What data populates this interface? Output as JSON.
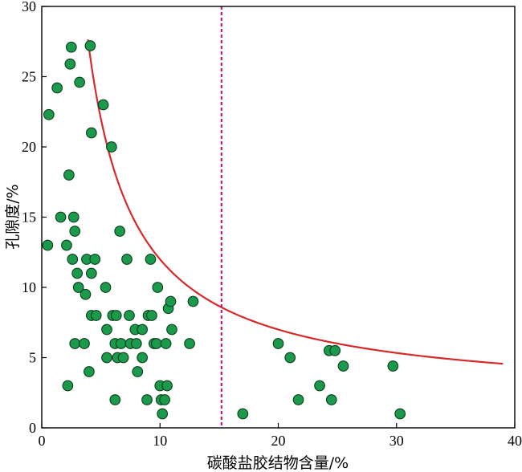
{
  "chart_data": {
    "type": "scatter",
    "xlabel": "碳酸盐胶结物含量/%",
    "ylabel": "孔隙度/%",
    "xlim": [
      0,
      40
    ],
    "ylim": [
      0,
      30
    ],
    "x_ticks": [
      0,
      10,
      20,
      30,
      40
    ],
    "y_ticks": [
      0,
      5,
      10,
      15,
      20,
      25,
      30
    ],
    "grid": false,
    "legend": "none",
    "colors": {
      "points_fill": "#1a9a4a",
      "points_stroke": "#0b3d1e",
      "trend_curve": "#d62a2a",
      "reference_line": "#c4168c",
      "axis": "#000000"
    },
    "series": [
      {
        "values": [
          [
            0.5,
            13
          ],
          [
            0.6,
            22.3
          ],
          [
            1.3,
            24.2
          ],
          [
            1.6,
            15
          ],
          [
            2.2,
            3
          ],
          [
            2.3,
            18
          ],
          [
            2.4,
            25.9
          ],
          [
            2.5,
            27.1
          ],
          [
            2.7,
            15
          ],
          [
            2.8,
            14
          ],
          [
            2.1,
            13
          ],
          [
            2.6,
            12
          ],
          [
            3.0,
            11
          ],
          [
            3.1,
            10
          ],
          [
            3.2,
            24.6
          ],
          [
            2.8,
            6
          ],
          [
            3.6,
            6
          ],
          [
            3.7,
            9.5
          ],
          [
            3.8,
            12
          ],
          [
            4.0,
            4
          ],
          [
            4.1,
            27.2
          ],
          [
            4.2,
            21
          ],
          [
            4.2,
            11
          ],
          [
            4.5,
            12
          ],
          [
            4.2,
            8
          ],
          [
            4.6,
            8
          ],
          [
            5.2,
            23
          ],
          [
            5.4,
            10
          ],
          [
            5.5,
            7
          ],
          [
            5.5,
            5
          ],
          [
            5.9,
            20
          ],
          [
            6.0,
            8
          ],
          [
            6.3,
            8
          ],
          [
            6.2,
            6
          ],
          [
            6.4,
            5
          ],
          [
            6.6,
            14
          ],
          [
            6.7,
            6
          ],
          [
            6.2,
            2
          ],
          [
            6.9,
            5
          ],
          [
            7.2,
            12
          ],
          [
            7.4,
            8
          ],
          [
            7.5,
            6
          ],
          [
            7.9,
            7
          ],
          [
            8.0,
            6
          ],
          [
            8.1,
            4
          ],
          [
            8.5,
            7
          ],
          [
            8.5,
            5
          ],
          [
            8.9,
            2
          ],
          [
            9.0,
            8
          ],
          [
            9.2,
            12
          ],
          [
            9.3,
            8
          ],
          [
            9.5,
            6
          ],
          [
            9.7,
            6
          ],
          [
            9.8,
            10
          ],
          [
            10.0,
            3
          ],
          [
            10.1,
            2
          ],
          [
            10.2,
            1
          ],
          [
            10.4,
            2
          ],
          [
            10.5,
            6
          ],
          [
            10.6,
            3
          ],
          [
            10.7,
            8.5
          ],
          [
            10.9,
            9
          ],
          [
            11.0,
            7
          ],
          [
            12.5,
            6
          ],
          [
            12.8,
            9
          ],
          [
            17.0,
            1
          ],
          [
            20.0,
            6
          ],
          [
            21.0,
            5
          ],
          [
            21.7,
            2
          ],
          [
            23.5,
            3
          ],
          [
            24.3,
            5.5
          ],
          [
            24.5,
            2
          ],
          [
            24.8,
            5.5
          ],
          [
            25.5,
            4.4
          ],
          [
            29.7,
            4.4
          ],
          [
            30.3,
            1
          ]
        ]
      }
    ],
    "trend_curve": {
      "form": "y = a + b / x",
      "a": 2.0,
      "b": 100,
      "x_range": [
        3.9,
        39.0
      ]
    },
    "reference_line": {
      "orientation": "vertical",
      "x": 15.2,
      "style": "dashed"
    }
  }
}
